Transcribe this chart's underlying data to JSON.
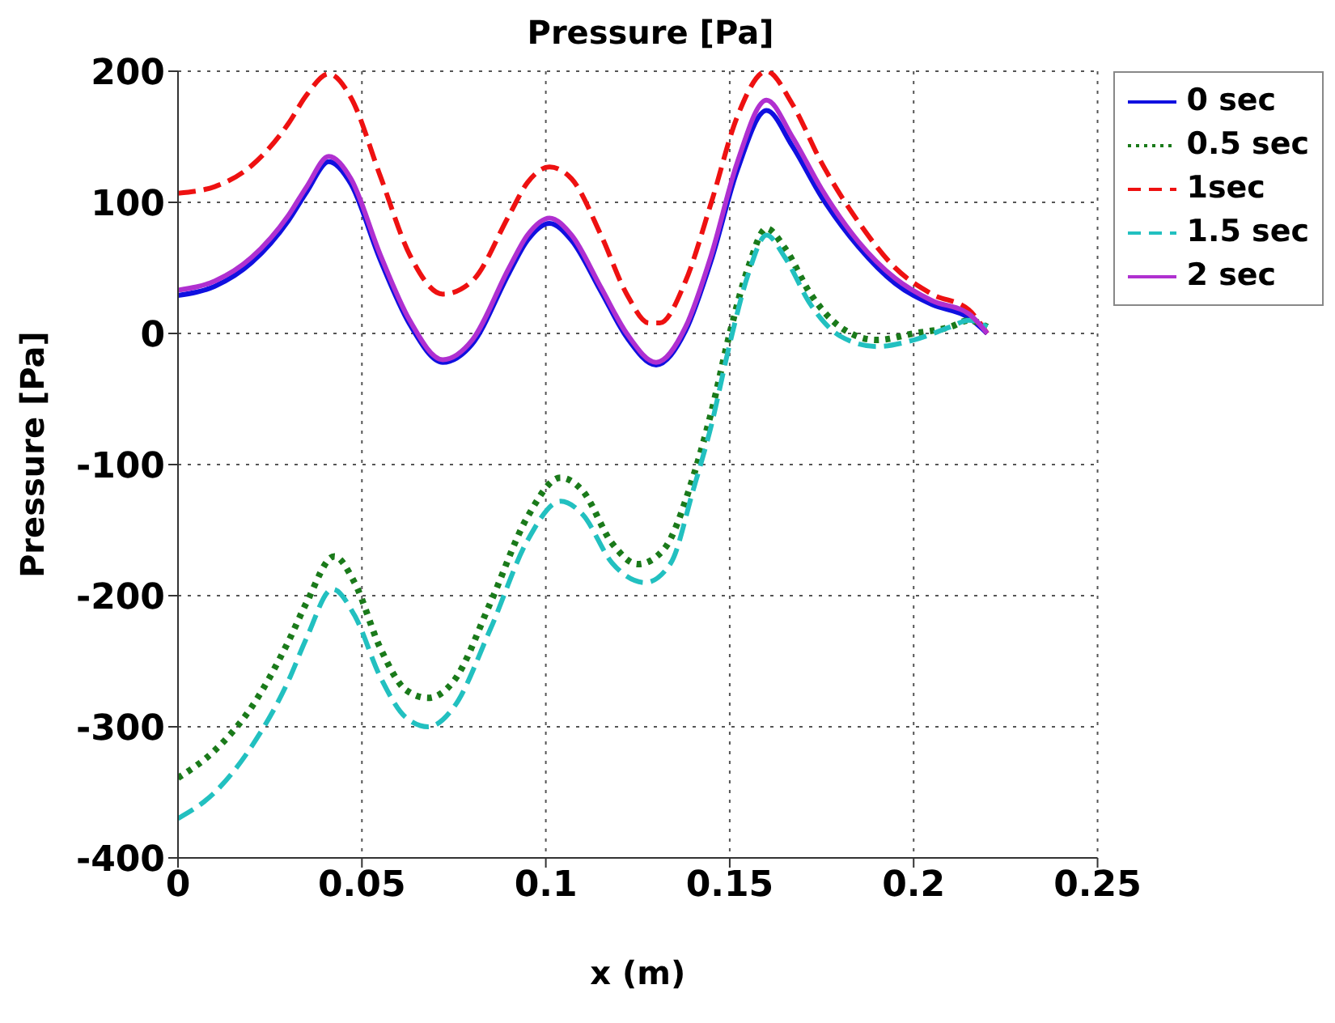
{
  "chart_data": {
    "type": "line",
    "title": "Pressure [Pa]",
    "xlabel": "x (m)",
    "ylabel": "Pressure [Pa]",
    "xlim": [
      0,
      0.25
    ],
    "xticks": [
      0,
      0.05,
      0.1,
      0.15,
      0.2,
      0.25
    ],
    "ylim": [
      -400,
      200
    ],
    "yticks": [
      -400,
      -300,
      -200,
      -100,
      0,
      100,
      200
    ],
    "grid": true,
    "legend": "right",
    "marker": "none",
    "series": [
      {
        "name": "0 sec",
        "color": "#1010e0",
        "line_style": "solid",
        "x": [
          0,
          0.01,
          0.02,
          0.03,
          0.035,
          0.041,
          0.047,
          0.055,
          0.063,
          0.072,
          0.08,
          0.09,
          0.095,
          0.101,
          0.107,
          0.115,
          0.122,
          0.13,
          0.138,
          0.145,
          0.152,
          0.16,
          0.167,
          0.175,
          0.185,
          0.195,
          0.205,
          0.215,
          0.22
        ],
        "values": [
          29,
          36,
          54,
          86,
          108,
          131,
          114,
          56,
          7,
          -22,
          -8,
          46,
          71,
          84,
          71,
          32,
          -3,
          -24,
          2,
          56,
          124,
          170,
          143,
          104,
          66,
          38,
          22,
          12,
          0
        ]
      },
      {
        "name": "0.5 sec",
        "color": "#1a7a1a",
        "line_style": "dotted",
        "x": [
          0,
          0.01,
          0.02,
          0.03,
          0.035,
          0.0425,
          0.048,
          0.055,
          0.062,
          0.068,
          0.075,
          0.085,
          0.095,
          0.104,
          0.11,
          0.118,
          0.125,
          0.132,
          0.14,
          0.145,
          0.15,
          0.155,
          0.16,
          0.165,
          0.172,
          0.18,
          0.19,
          0.2,
          0.21,
          0.215,
          0.22
        ],
        "values": [
          -339,
          -318,
          -285,
          -235,
          -205,
          -170,
          -190,
          -240,
          -272,
          -278,
          -265,
          -205,
          -140,
          -110,
          -120,
          -160,
          -176,
          -165,
          -110,
          -60,
          0,
          50,
          80,
          65,
          30,
          5,
          -5,
          0,
          5,
          10,
          5
        ]
      },
      {
        "name": "1sec",
        "color": "#ee1111",
        "line_style": "dashed",
        "x": [
          0,
          0.01,
          0.02,
          0.03,
          0.035,
          0.041,
          0.047,
          0.055,
          0.063,
          0.072,
          0.08,
          0.09,
          0.095,
          0.101,
          0.107,
          0.115,
          0.122,
          0.128,
          0.131,
          0.138,
          0.145,
          0.152,
          0.16,
          0.167,
          0.175,
          0.185,
          0.195,
          0.205,
          0.215,
          0.22
        ],
        "values": [
          107,
          112,
          128,
          160,
          182,
          198,
          180,
          120,
          60,
          30,
          40,
          90,
          115,
          127,
          118,
          75,
          30,
          8,
          8,
          40,
          100,
          165,
          200,
          175,
          130,
          85,
          50,
          30,
          18,
          0
        ]
      },
      {
        "name": "1.5 sec",
        "color": "#22c0c0",
        "line_style": "dashed",
        "x": [
          0,
          0.01,
          0.02,
          0.03,
          0.035,
          0.042,
          0.048,
          0.055,
          0.062,
          0.068,
          0.075,
          0.085,
          0.095,
          0.104,
          0.11,
          0.118,
          0.127,
          0.134,
          0.14,
          0.145,
          0.15,
          0.155,
          0.16,
          0.165,
          0.172,
          0.18,
          0.19,
          0.2,
          0.21,
          0.215,
          0.22
        ],
        "values": [
          -370,
          -350,
          -315,
          -265,
          -232,
          -195,
          -215,
          -262,
          -293,
          -300,
          -285,
          -225,
          -158,
          -128,
          -138,
          -175,
          -190,
          -175,
          -120,
          -70,
          -8,
          45,
          75,
          58,
          22,
          -2,
          -10,
          -5,
          5,
          10,
          5
        ]
      },
      {
        "name": "2 sec",
        "color": "#b030d0",
        "line_style": "solid",
        "x": [
          0,
          0.01,
          0.02,
          0.03,
          0.035,
          0.041,
          0.047,
          0.055,
          0.063,
          0.072,
          0.08,
          0.09,
          0.095,
          0.101,
          0.107,
          0.115,
          0.122,
          0.13,
          0.138,
          0.145,
          0.152,
          0.16,
          0.167,
          0.175,
          0.185,
          0.195,
          0.205,
          0.215,
          0.22
        ],
        "values": [
          33,
          40,
          58,
          90,
          112,
          135,
          118,
          60,
          10,
          -20,
          -5,
          50,
          75,
          88,
          75,
          35,
          0,
          -22,
          5,
          60,
          130,
          178,
          150,
          110,
          70,
          42,
          25,
          15,
          0
        ]
      }
    ]
  }
}
